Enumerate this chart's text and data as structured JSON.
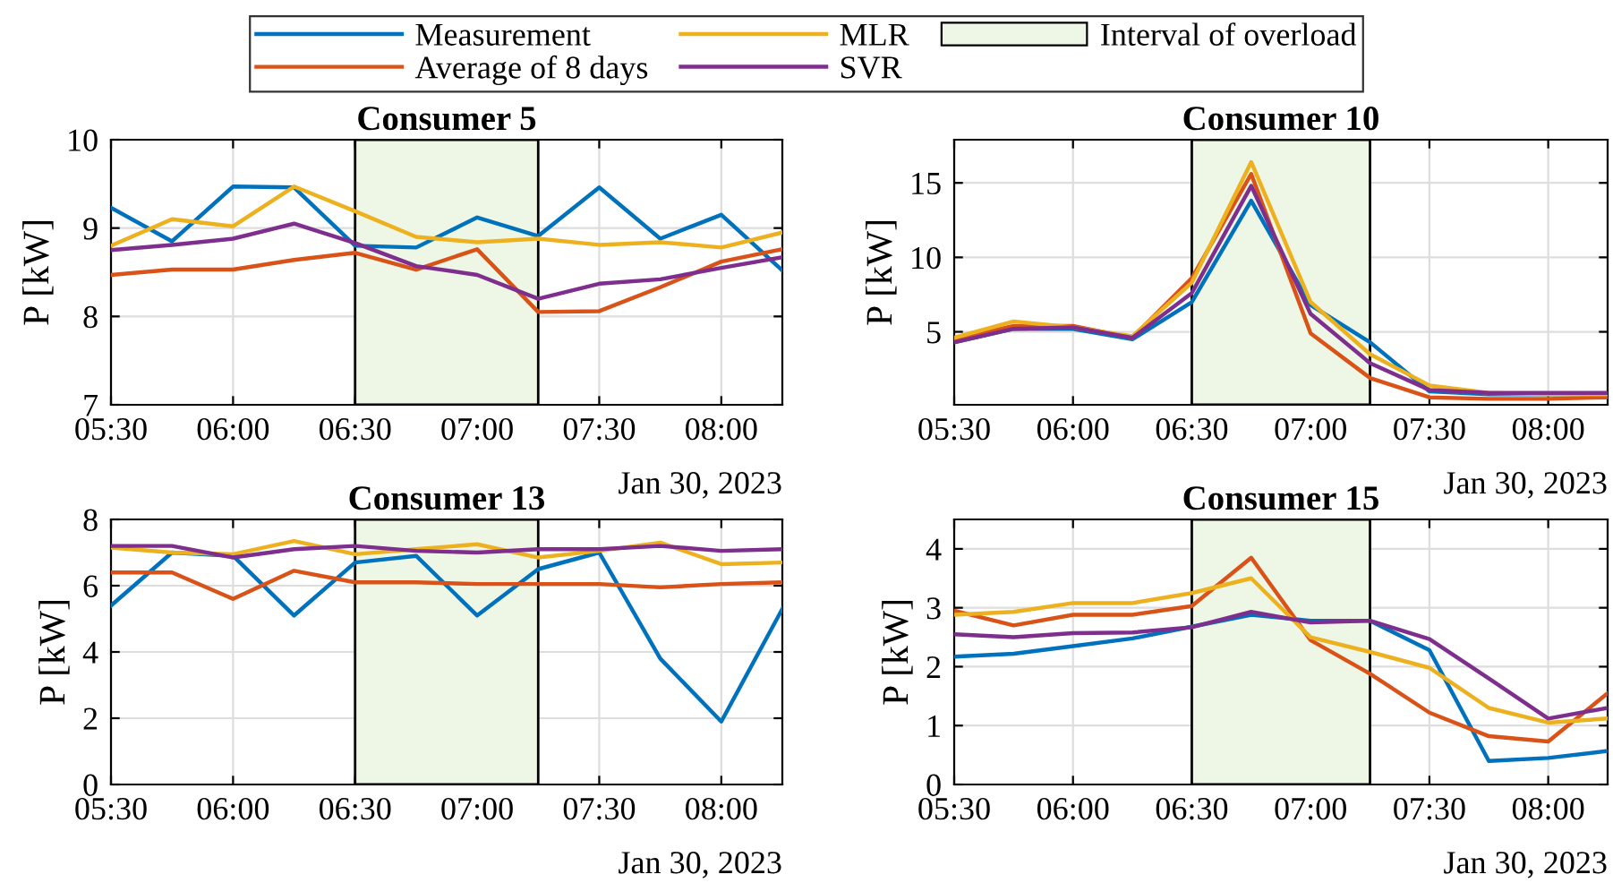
{
  "chart_data": [
    {
      "type": "line",
      "title": "Consumer 5",
      "ylabel": "P [kW]",
      "x": [
        5.5,
        5.75,
        6.0,
        6.25,
        6.5,
        6.75,
        7.0,
        7.25,
        7.5,
        7.75,
        8.0,
        8.25
      ],
      "series": [
        {
          "name": "Measurement",
          "color": "#0072bd",
          "values": [
            9.23,
            8.85,
            9.47,
            9.46,
            8.8,
            8.78,
            9.12,
            8.91,
            9.46,
            8.88,
            9.15,
            8.52
          ]
        },
        {
          "name": "Average of 8 days",
          "color": "#d95319",
          "values": [
            8.47,
            8.53,
            8.53,
            8.64,
            8.72,
            8.53,
            8.76,
            8.05,
            8.06,
            8.33,
            8.62,
            8.76
          ]
        },
        {
          "name": "MLR",
          "color": "#edb120",
          "values": [
            8.8,
            9.1,
            9.02,
            9.47,
            9.19,
            8.9,
            8.84,
            8.88,
            8.81,
            8.84,
            8.78,
            8.95
          ]
        },
        {
          "name": "SVR",
          "color": "#7e2f8e",
          "values": [
            8.75,
            8.81,
            8.88,
            9.05,
            8.83,
            8.57,
            8.47,
            8.2,
            8.37,
            8.42,
            8.55,
            8.67
          ]
        }
      ],
      "bands": [
        {
          "axis": "x",
          "from": 6.5,
          "to": 7.25,
          "label": "Interval of overload",
          "color": "#eef7e6"
        }
      ],
      "xlim": [
        5.5,
        8.25
      ],
      "xticks": [
        {
          "value": 5.5,
          "label": "05:30"
        },
        {
          "value": 6.0,
          "label": "06:00"
        },
        {
          "value": 6.5,
          "label": "06:30"
        },
        {
          "value": 7.0,
          "label": "07:00"
        },
        {
          "value": 7.5,
          "label": "07:30"
        },
        {
          "value": 8.0,
          "label": "08:00"
        }
      ],
      "ylim": [
        7,
        10
      ],
      "yticks": [
        7,
        8,
        9,
        10
      ],
      "grid": true,
      "legend": "top",
      "annotations": [
        "Jan 30, 2023"
      ]
    },
    {
      "type": "line",
      "title": "Consumer 10",
      "ylabel": "P [kW]",
      "x": [
        5.5,
        5.75,
        6.0,
        6.25,
        6.5,
        6.75,
        7.0,
        7.25,
        7.5,
        7.75,
        8.0,
        8.25
      ],
      "series": [
        {
          "color": "#0072bd",
          "values": [
            4.3,
            5.2,
            5.2,
            4.5,
            7.0,
            13.8,
            6.8,
            4.3,
            1.0,
            0.8,
            0.8,
            0.8
          ]
        },
        {
          "color": "#d95319",
          "values": [
            4.5,
            5.4,
            5.4,
            4.6,
            8.6,
            15.6,
            4.9,
            1.9,
            0.6,
            0.5,
            0.5,
            0.6
          ]
        },
        {
          "color": "#edb120",
          "values": [
            4.6,
            5.7,
            5.3,
            4.7,
            8.3,
            16.4,
            7.0,
            3.5,
            1.4,
            0.9,
            0.8,
            0.8
          ]
        },
        {
          "color": "#7e2f8e",
          "values": [
            4.3,
            5.2,
            5.3,
            4.6,
            7.6,
            14.8,
            6.2,
            2.9,
            1.1,
            0.9,
            0.9,
            0.9
          ]
        }
      ],
      "bands": [
        {
          "axis": "x",
          "from": 6.5,
          "to": 7.25,
          "color": "#eef7e6"
        }
      ],
      "xlim": [
        5.5,
        8.25
      ],
      "xticks": [
        {
          "value": 5.5,
          "label": "05:30"
        },
        {
          "value": 6.0,
          "label": "06:00"
        },
        {
          "value": 6.5,
          "label": "06:30"
        },
        {
          "value": 7.0,
          "label": "07:00"
        },
        {
          "value": 7.5,
          "label": "07:30"
        },
        {
          "value": 8.0,
          "label": "08:00"
        }
      ],
      "ylim": [
        0.1,
        17.9
      ],
      "yticks": [
        5,
        10,
        15
      ],
      "grid": true,
      "annotations": [
        "Jan 30, 2023"
      ]
    },
    {
      "type": "line",
      "title": "Consumer 13",
      "ylabel": "P [kW]",
      "x": [
        5.5,
        5.75,
        6.0,
        6.25,
        6.5,
        6.75,
        7.0,
        7.25,
        7.5,
        7.75,
        8.0,
        8.25
      ],
      "series": [
        {
          "color": "#0072bd",
          "values": [
            5.4,
            7.0,
            6.9,
            5.1,
            6.7,
            6.9,
            5.1,
            6.5,
            7.0,
            3.8,
            1.9,
            5.3
          ]
        },
        {
          "color": "#d95319",
          "values": [
            6.4,
            6.4,
            5.6,
            6.45,
            6.1,
            6.1,
            6.05,
            6.05,
            6.05,
            5.95,
            6.05,
            6.1
          ]
        },
        {
          "color": "#edb120",
          "values": [
            7.15,
            7.0,
            6.95,
            7.35,
            6.95,
            7.1,
            7.25,
            6.85,
            7.05,
            7.3,
            6.65,
            6.7
          ]
        },
        {
          "color": "#7e2f8e",
          "values": [
            7.2,
            7.2,
            6.85,
            7.1,
            7.2,
            7.05,
            7.0,
            7.1,
            7.1,
            7.2,
            7.05,
            7.1
          ]
        }
      ],
      "bands": [
        {
          "axis": "x",
          "from": 6.5,
          "to": 7.25,
          "color": "#eef7e6"
        }
      ],
      "xlim": [
        5.5,
        8.25
      ],
      "xticks": [
        {
          "value": 5.5,
          "label": "05:30"
        },
        {
          "value": 6.0,
          "label": "06:00"
        },
        {
          "value": 6.5,
          "label": "06:30"
        },
        {
          "value": 7.0,
          "label": "07:00"
        },
        {
          "value": 7.5,
          "label": "07:30"
        },
        {
          "value": 8.0,
          "label": "08:00"
        }
      ],
      "ylim": [
        0,
        8
      ],
      "yticks": [
        0,
        2,
        4,
        6,
        8
      ],
      "grid": true,
      "annotations": [
        "Jan 30, 2023"
      ]
    },
    {
      "type": "line",
      "title": "Consumer 15",
      "ylabel": "P [kW]",
      "x": [
        5.5,
        5.75,
        6.0,
        6.25,
        6.5,
        6.75,
        7.0,
        7.25,
        7.5,
        7.75,
        8.0,
        8.25
      ],
      "series": [
        {
          "color": "#0072bd",
          "values": [
            2.17,
            2.22,
            2.35,
            2.48,
            2.68,
            2.88,
            2.78,
            2.78,
            2.28,
            0.4,
            0.45,
            0.57
          ]
        },
        {
          "color": "#d95319",
          "values": [
            2.95,
            2.7,
            2.88,
            2.88,
            3.03,
            3.85,
            2.45,
            1.88,
            1.22,
            0.82,
            0.73,
            1.55
          ]
        },
        {
          "color": "#edb120",
          "values": [
            2.88,
            2.93,
            3.08,
            3.08,
            3.25,
            3.5,
            2.5,
            2.25,
            1.98,
            1.3,
            1.05,
            1.12
          ]
        },
        {
          "color": "#7e2f8e",
          "values": [
            2.55,
            2.5,
            2.57,
            2.58,
            2.67,
            2.93,
            2.75,
            2.78,
            2.47,
            1.8,
            1.12,
            1.3
          ]
        }
      ],
      "bands": [
        {
          "axis": "x",
          "from": 6.5,
          "to": 7.25,
          "color": "#eef7e6"
        }
      ],
      "xlim": [
        5.5,
        8.25
      ],
      "xticks": [
        {
          "value": 5.5,
          "label": "05:30"
        },
        {
          "value": 6.0,
          "label": "06:00"
        },
        {
          "value": 6.5,
          "label": "06:30"
        },
        {
          "value": 7.0,
          "label": "07:00"
        },
        {
          "value": 7.5,
          "label": "07:30"
        },
        {
          "value": 8.0,
          "label": "08:00"
        }
      ],
      "ylim": [
        0,
        4.5
      ],
      "yticks": [
        0,
        1,
        2,
        3,
        4
      ],
      "grid": true,
      "annotations": [
        "Jan 30, 2023"
      ]
    }
  ]
}
